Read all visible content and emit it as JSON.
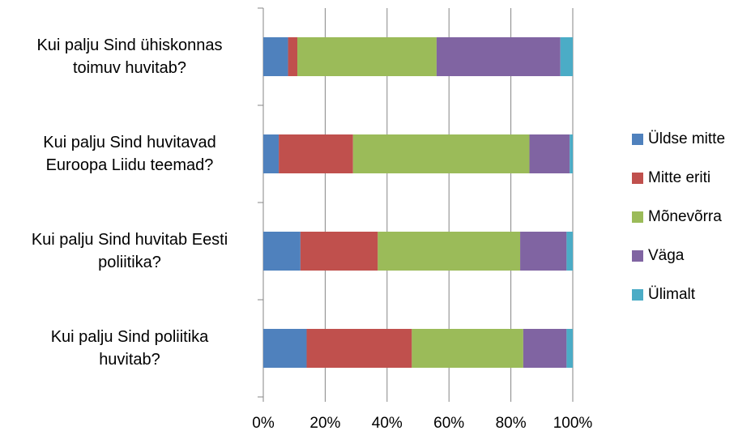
{
  "chart_data": {
    "type": "bar",
    "orientation": "horizontal",
    "stacked": true,
    "categories": [
      "Kui palju Sind ühiskonnas\ntoimuv huvitab?",
      "Kui palju Sind huvitavad\nEuroopa Liidu teemad?",
      "Kui palju Sind huvitab Eesti\npoliitika?",
      "Kui palju Sind poliitika\nhuvitab?"
    ],
    "series": [
      {
        "name": "Üldse mitte",
        "color": "#4f81bd",
        "values": [
          8,
          5,
          12,
          14
        ]
      },
      {
        "name": "Mitte eriti",
        "color": "#c0504d",
        "values": [
          3,
          24,
          25,
          34
        ]
      },
      {
        "name": "Mõnevõrra",
        "color": "#9bbb59",
        "values": [
          45,
          57,
          46,
          36
        ]
      },
      {
        "name": "Väga",
        "color": "#8064a2",
        "values": [
          40,
          13,
          15,
          14
        ]
      },
      {
        "name": "Ülimalt",
        "color": "#4bacc6",
        "values": [
          4,
          1,
          2,
          2
        ]
      }
    ],
    "xlim": [
      0,
      100
    ],
    "xticks": [
      {
        "value": 0,
        "label": "0%"
      },
      {
        "value": 20,
        "label": "20%"
      },
      {
        "value": 40,
        "label": "40%"
      },
      {
        "value": 60,
        "label": "60%"
      },
      {
        "value": 80,
        "label": "80%"
      },
      {
        "value": 100,
        "label": "100%"
      }
    ],
    "grid": true,
    "legend": "right"
  }
}
